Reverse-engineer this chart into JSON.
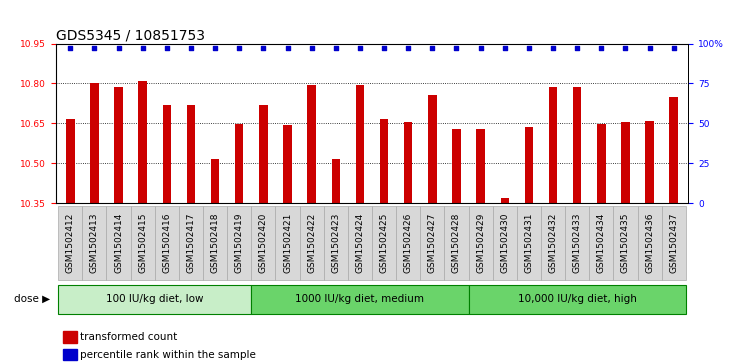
{
  "title": "GDS5345 / 10851753",
  "categories": [
    "GSM1502412",
    "GSM1502413",
    "GSM1502414",
    "GSM1502415",
    "GSM1502416",
    "GSM1502417",
    "GSM1502418",
    "GSM1502419",
    "GSM1502420",
    "GSM1502421",
    "GSM1502422",
    "GSM1502423",
    "GSM1502424",
    "GSM1502425",
    "GSM1502426",
    "GSM1502427",
    "GSM1502428",
    "GSM1502429",
    "GSM1502430",
    "GSM1502431",
    "GSM1502432",
    "GSM1502433",
    "GSM1502434",
    "GSM1502435",
    "GSM1502436",
    "GSM1502437"
  ],
  "bar_values": [
    10.665,
    10.8,
    10.785,
    10.81,
    10.72,
    10.72,
    10.515,
    10.648,
    10.72,
    10.645,
    10.793,
    10.515,
    10.795,
    10.665,
    10.655,
    10.755,
    10.63,
    10.63,
    10.37,
    10.638,
    10.785,
    10.785,
    10.648,
    10.655,
    10.66,
    10.75
  ],
  "percentile_values": [
    97,
    97,
    97,
    97,
    97,
    97,
    97,
    97,
    97,
    97,
    97,
    97,
    97,
    97,
    97,
    97,
    97,
    97,
    97,
    97,
    97,
    97,
    97,
    97,
    97,
    97
  ],
  "bar_color": "#cc0000",
  "percentile_color": "#0000cc",
  "ylim_left": [
    10.35,
    10.95
  ],
  "ylim_right": [
    0,
    100
  ],
  "yticks_left": [
    10.35,
    10.5,
    10.65,
    10.8,
    10.95
  ],
  "yticks_right": [
    0,
    25,
    50,
    75,
    100
  ],
  "ytick_labels_right": [
    "0",
    "25",
    "50",
    "75",
    "100%"
  ],
  "groups": [
    {
      "label": "100 IU/kg diet, low",
      "start": 0,
      "end": 8
    },
    {
      "label": "1000 IU/kg diet, medium",
      "start": 8,
      "end": 17
    },
    {
      "label": "10,000 IU/kg diet, high",
      "start": 17,
      "end": 26
    }
  ],
  "group_color_1": "#b8e8b8",
  "group_color_2": "#66cc66",
  "group_border_color": "#008000",
  "dose_label": "dose",
  "legend_items": [
    {
      "label": "transformed count",
      "color": "#cc0000"
    },
    {
      "label": "percentile rank within the sample",
      "color": "#0000cc"
    }
  ],
  "background_color": "#ffffff",
  "plot_bg_color": "#ffffff",
  "tick_label_bg": "#d8d8d8",
  "grid_color": "#000000",
  "title_fontsize": 10,
  "tick_fontsize": 6.5,
  "label_fontsize": 8
}
